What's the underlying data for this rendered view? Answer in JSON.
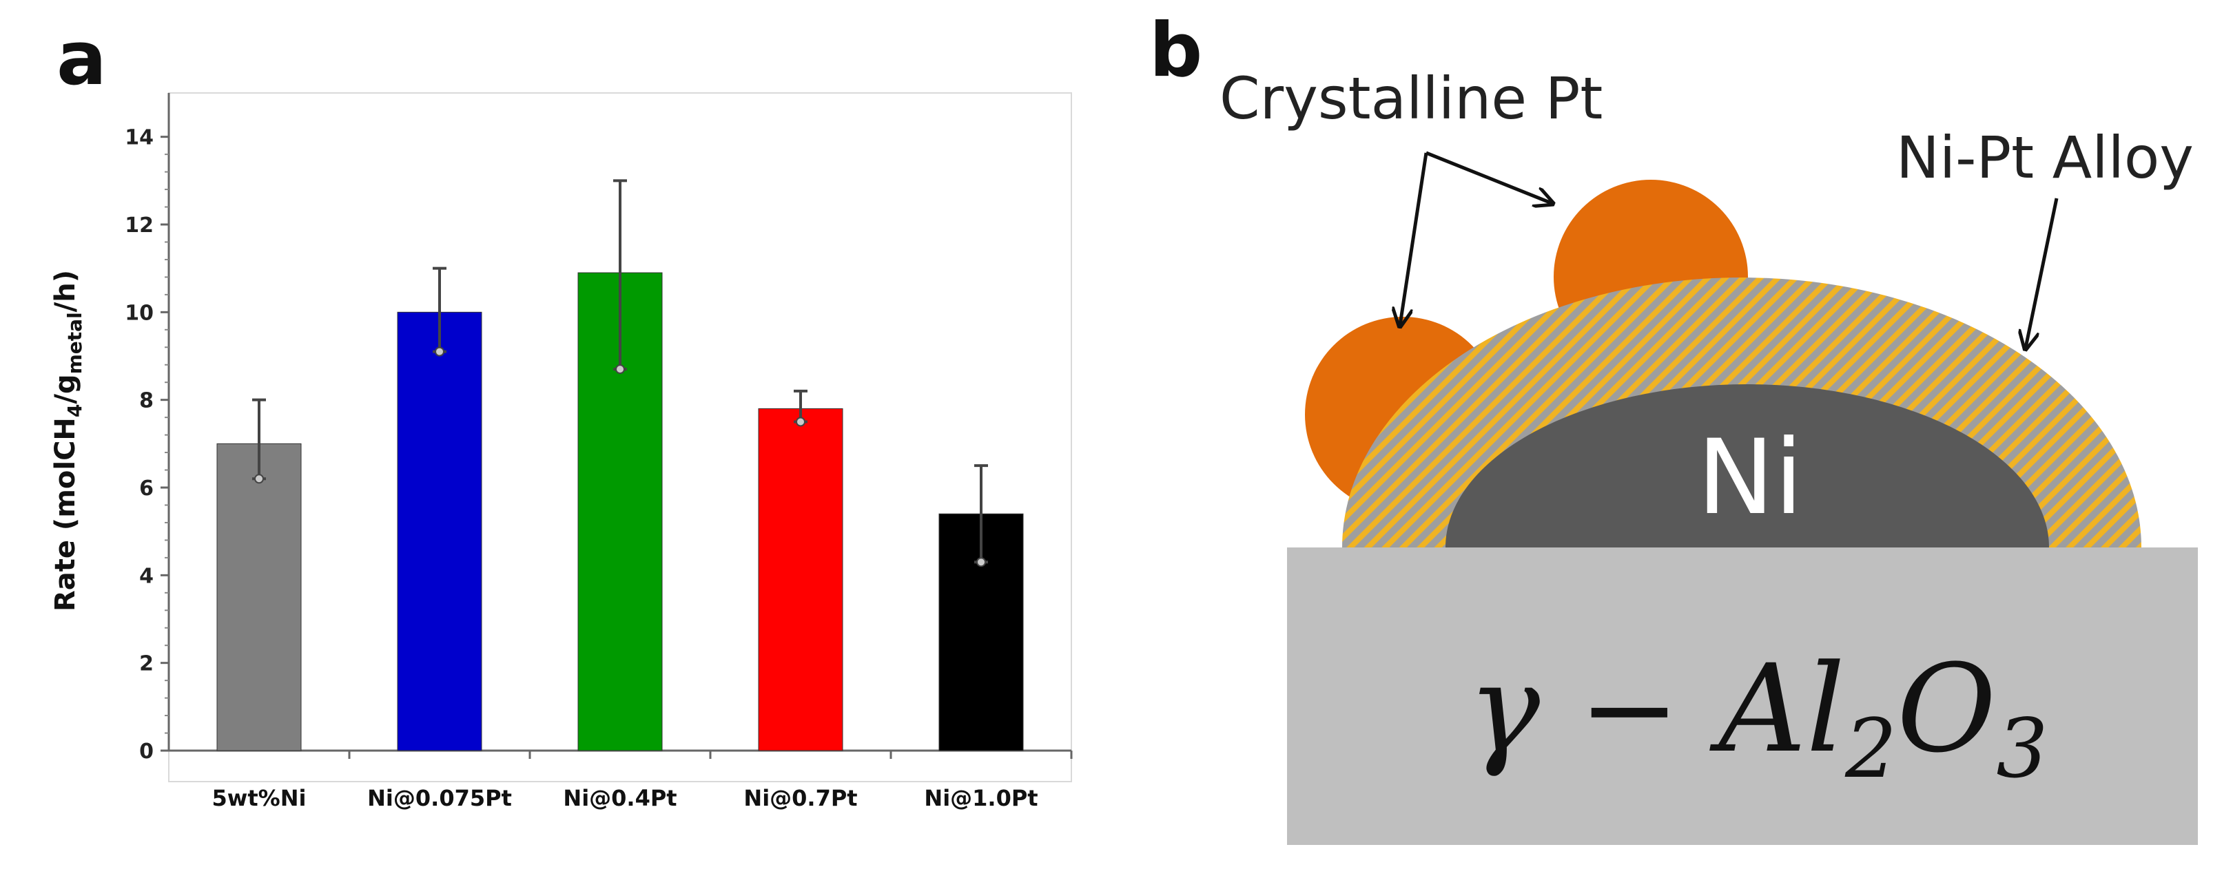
{
  "panel_a": {
    "label": "a",
    "ylabel_prefix": "Rate (molCH",
    "ylabel_sub1": "4",
    "ylabel_mid": "/g",
    "ylabel_sub2": "metal",
    "ylabel_suffix": "/h)"
  },
  "chart_data": {
    "type": "bar",
    "title": "",
    "xlabel": "",
    "ylabel": "Rate (molCH4/gmetal/h)",
    "categories": [
      "5wt%Ni",
      "Ni@0.075Pt",
      "Ni@0.4Pt",
      "Ni@0.7Pt",
      "Ni@1.0Pt"
    ],
    "values": [
      7.0,
      10.0,
      10.9,
      7.8,
      5.4
    ],
    "error_high": [
      8.0,
      11.0,
      13.0,
      8.2,
      6.5
    ],
    "error_low": [
      6.2,
      9.1,
      8.7,
      7.5,
      4.3
    ],
    "colors": [
      "#7f7f7f",
      "#0000cc",
      "#009a00",
      "#ff0000",
      "#000000"
    ],
    "ylim": [
      0,
      15
    ],
    "yticks": [
      "0",
      "2",
      "4",
      "6",
      "8",
      "10",
      "12",
      "14"
    ],
    "grid": false,
    "legend": "none"
  },
  "panel_b": {
    "label": "b",
    "crystalline_label": "Crystalline Pt",
    "alloy_label": "Ni-Pt Alloy",
    "core_label": "Ni",
    "substrate_gamma": "γ − Al",
    "substrate_sub1": "2",
    "substrate_o": "O",
    "substrate_sub2": "3",
    "colors": {
      "pt": "#e36c0a",
      "alloy_base": "#9e9e9e",
      "alloy_stripe": "#f0b323",
      "core": "#595959",
      "substrate": "#bfbfbf"
    }
  }
}
